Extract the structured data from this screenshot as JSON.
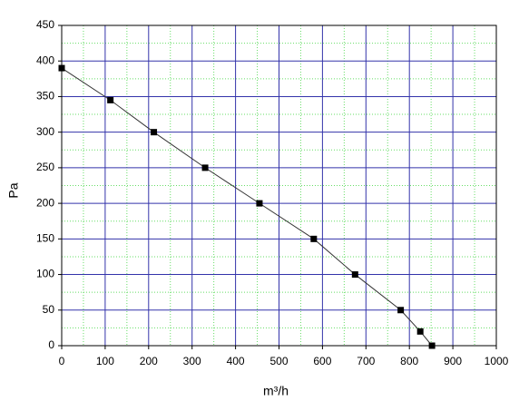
{
  "chart_data": {
    "type": "line",
    "x_label": "m³/h",
    "y_label": "Pa",
    "x": [
      0,
      112,
      212,
      330,
      455,
      580,
      675,
      780,
      825,
      852
    ],
    "series": [
      {
        "color": "#333333",
        "marker_color": "#000000",
        "values": [
          390,
          345,
          300,
          250,
          200,
          150,
          100,
          50,
          20,
          0
        ]
      }
    ],
    "xlim": [
      0,
      1000
    ],
    "xticks": [
      0,
      100,
      200,
      300,
      400,
      500,
      600,
      700,
      800,
      900,
      1000
    ],
    "ylim": [
      0,
      450
    ],
    "yticks": [
      0,
      50,
      100,
      150,
      200,
      250,
      300,
      350,
      400,
      450
    ],
    "grid": true,
    "grid_color": "#3333aa",
    "minor_grid": true,
    "minor_grid_color": "#66dd66"
  }
}
